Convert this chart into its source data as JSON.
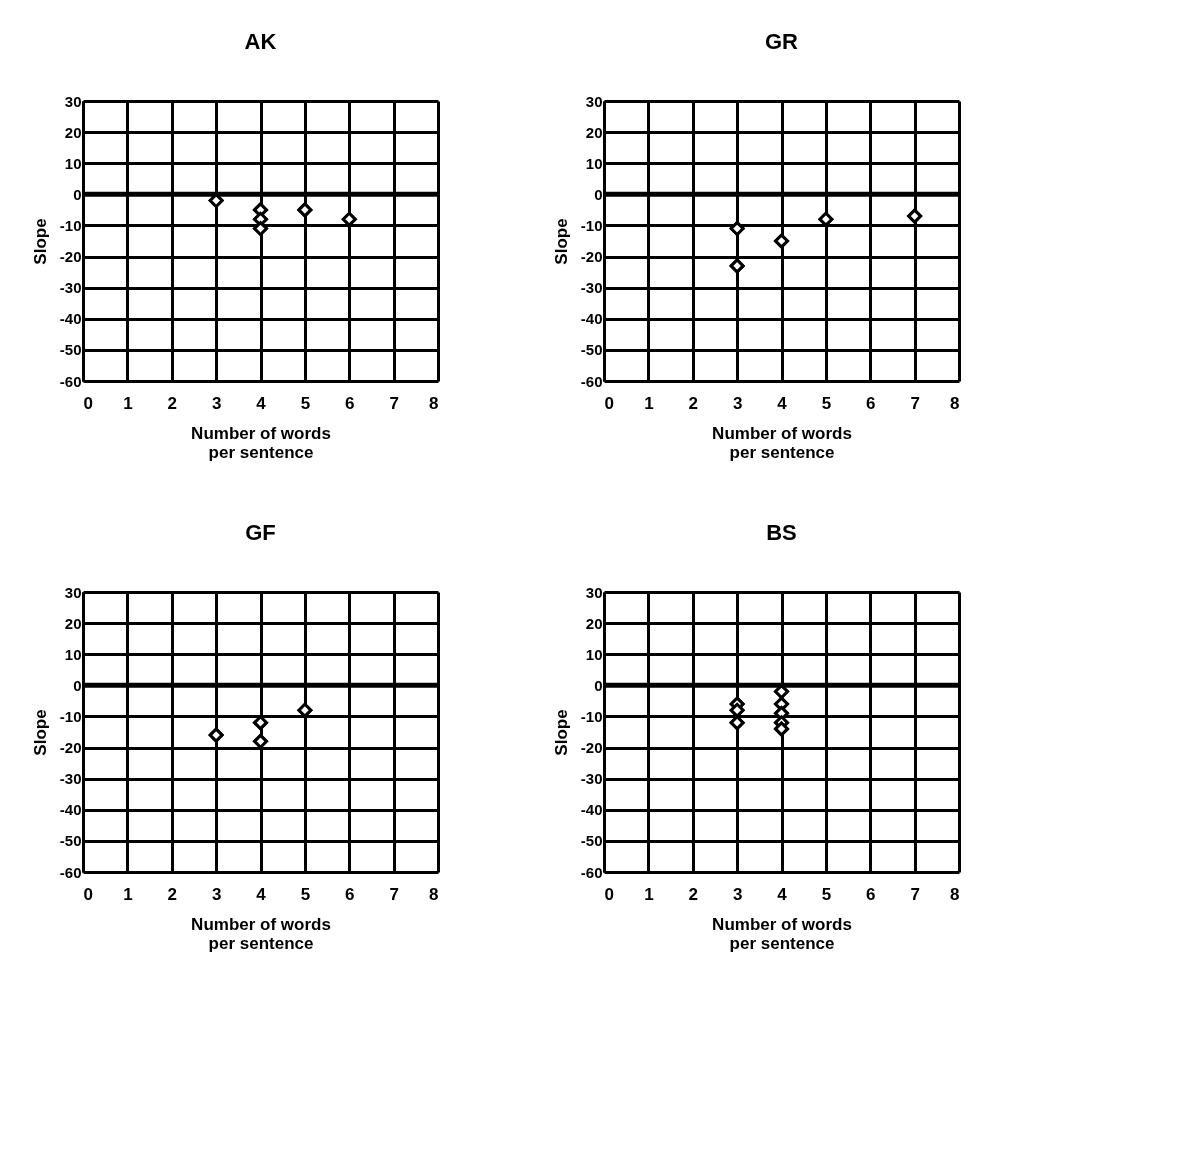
{
  "chart_data": [
    {
      "type": "scatter",
      "title": "AK",
      "xlabel": "Number of words per sentence",
      "ylabel": "Slope",
      "x": [
        3,
        4,
        4,
        4,
        5,
        6
      ],
      "values": [
        -2,
        -5,
        -8,
        -11,
        -5,
        -8
      ],
      "color": "#000000",
      "marker": "diamond",
      "grid": true,
      "xlim": [
        0,
        8
      ],
      "xticks": [
        0,
        1,
        2,
        3,
        4,
        5,
        6,
        7,
        8
      ],
      "ylim": [
        -60,
        30
      ],
      "yticks": [
        30,
        20,
        10,
        0,
        -10,
        -20,
        -30,
        -40,
        -50,
        -60
      ]
    },
    {
      "type": "scatter",
      "title": "GR",
      "xlabel": "Number of words per sentence",
      "ylabel": "Slope",
      "x": [
        3,
        3,
        4,
        5,
        7
      ],
      "values": [
        -11,
        -23,
        -15,
        -8,
        -7
      ],
      "color": "#000000",
      "marker": "diamond",
      "grid": true,
      "xlim": [
        0,
        8
      ],
      "xticks": [
        0,
        1,
        2,
        3,
        4,
        5,
        6,
        7,
        8
      ],
      "ylim": [
        -60,
        30
      ],
      "yticks": [
        30,
        20,
        10,
        0,
        -10,
        -20,
        -30,
        -40,
        -50,
        -60
      ]
    },
    {
      "type": "scatter",
      "title": "GF",
      "xlabel": "Number of words per sentence",
      "ylabel": "Slope",
      "x": [
        3,
        4,
        4,
        5
      ],
      "values": [
        -16,
        -12,
        -18,
        -8
      ],
      "color": "#000000",
      "marker": "diamond",
      "grid": true,
      "xlim": [
        0,
        8
      ],
      "xticks": [
        0,
        1,
        2,
        3,
        4,
        5,
        6,
        7,
        8
      ],
      "ylim": [
        -60,
        30
      ],
      "yticks": [
        30,
        20,
        10,
        0,
        -10,
        -20,
        -30,
        -40,
        -50,
        -60
      ]
    },
    {
      "type": "scatter",
      "title": "BS",
      "xlabel": "Number of words per sentence",
      "ylabel": "Slope",
      "x": [
        3,
        3,
        3,
        4,
        4,
        4,
        4,
        4
      ],
      "values": [
        -6,
        -8,
        -12,
        -2,
        -6,
        -9,
        -12,
        -14
      ],
      "color": "#000000",
      "marker": "diamond",
      "grid": true,
      "xlim": [
        0,
        8
      ],
      "xticks": [
        0,
        1,
        2,
        3,
        4,
        5,
        6,
        7,
        8
      ],
      "ylim": [
        -60,
        30
      ],
      "yticks": [
        30,
        20,
        10,
        0,
        -10,
        -20,
        -30,
        -40,
        -50,
        -60
      ]
    }
  ]
}
